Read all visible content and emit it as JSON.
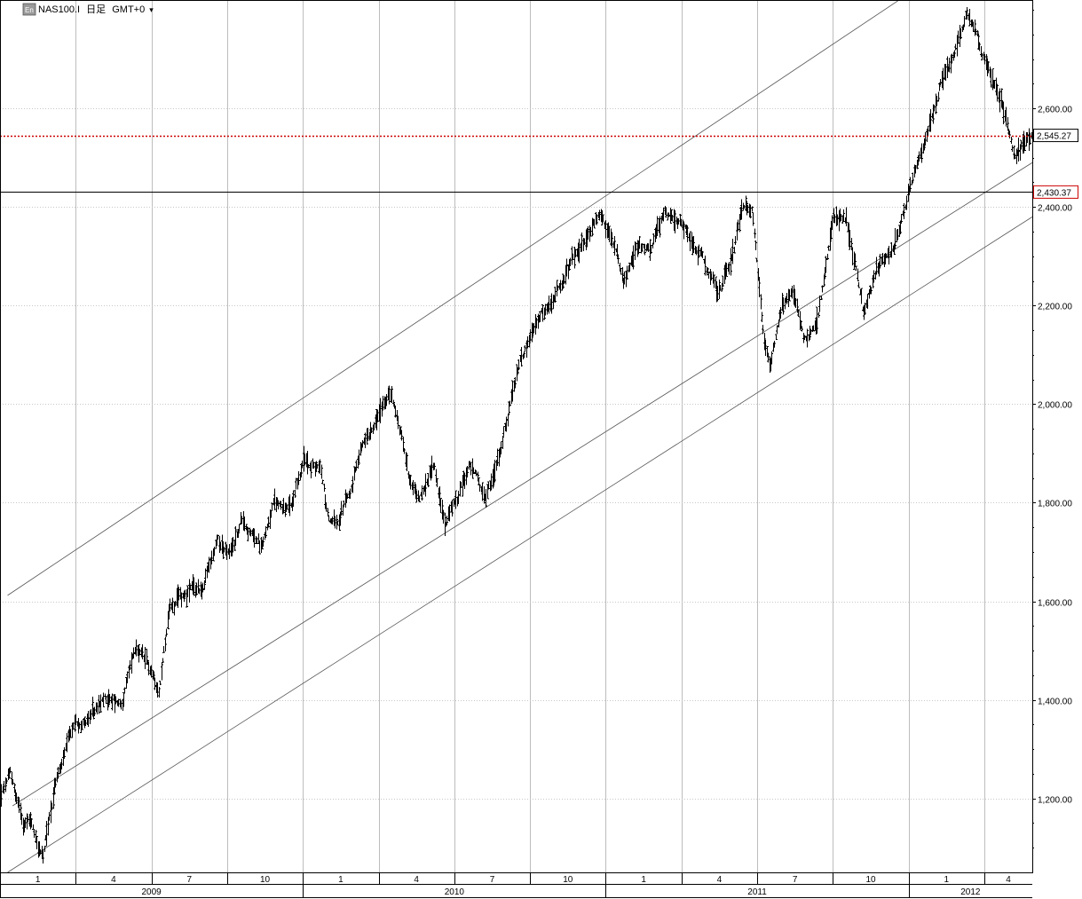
{
  "header": {
    "symbol": "NAS100.I",
    "timeframe": "日足",
    "timezone": "GMT+0",
    "menu_glyph": "▾"
  },
  "chart_data": {
    "type": "ohlc",
    "ylim": [
      1050,
      2820
    ],
    "y_ticks": [
      "1,200.00",
      "1,400.00",
      "1,600.00",
      "1,800.00",
      "2,000.00",
      "2,200.00",
      "2,400.00",
      "2,600.00"
    ],
    "y_tick_values": [
      1200,
      1400,
      1600,
      1800,
      2000,
      2200,
      2400,
      2600
    ],
    "x_month_labels": [
      "1",
      "4",
      "7",
      "10",
      "1",
      "4",
      "7",
      "10",
      "1",
      "4",
      "7",
      "10",
      "1",
      "4"
    ],
    "x_month_index": [
      0,
      3,
      6,
      9,
      12,
      15,
      18,
      21,
      24,
      27,
      30,
      33,
      36,
      39
    ],
    "x_range_months": [
      0,
      40.9
    ],
    "x_year_labels": [
      "2009",
      "2010",
      "2011",
      "2012"
    ],
    "x_year_index": [
      0,
      12,
      24,
      36
    ],
    "current_price": {
      "label": "2,545.27",
      "value": 2545.27,
      "color": "#cc0000"
    },
    "horizontal_line": {
      "label": "2,430.37",
      "value": 2430.37,
      "color": "#cc0000"
    },
    "channel_lines": [
      {
        "name": "upper",
        "points": [
          [
            0.3,
            1612
          ],
          [
            36.5,
            2850
          ]
        ]
      },
      {
        "name": "middle",
        "points": [
          [
            0.5,
            1185
          ],
          [
            40.9,
            2490
          ]
        ]
      },
      {
        "name": "lower",
        "points": [
          [
            0.3,
            1050
          ],
          [
            40.9,
            2380
          ]
        ]
      }
    ],
    "price_anchors": [
      [
        0.0,
        1205
      ],
      [
        0.4,
        1245
      ],
      [
        0.9,
        1150
      ],
      [
        1.2,
        1160
      ],
      [
        1.7,
        1080
      ],
      [
        2.2,
        1235
      ],
      [
        3.0,
        1350
      ],
      [
        3.6,
        1370
      ],
      [
        4.2,
        1400
      ],
      [
        4.8,
        1390
      ],
      [
        5.3,
        1500
      ],
      [
        5.9,
        1460
      ],
      [
        6.3,
        1420
      ],
      [
        6.7,
        1590
      ],
      [
        7.4,
        1620
      ],
      [
        8.0,
        1620
      ],
      [
        8.6,
        1720
      ],
      [
        9.1,
        1690
      ],
      [
        9.6,
        1770
      ],
      [
        10.3,
        1710
      ],
      [
        10.8,
        1800
      ],
      [
        11.6,
        1790
      ],
      [
        12.0,
        1880
      ],
      [
        12.7,
        1870
      ],
      [
        13.0,
        1770
      ],
      [
        13.4,
        1750
      ],
      [
        14.2,
        1880
      ],
      [
        14.8,
        1970
      ],
      [
        15.5,
        2020
      ],
      [
        15.8,
        1950
      ],
      [
        16.2,
        1860
      ],
      [
        16.6,
        1800
      ],
      [
        17.2,
        1880
      ],
      [
        17.6,
        1760
      ],
      [
        18.0,
        1800
      ],
      [
        18.6,
        1880
      ],
      [
        19.2,
        1800
      ],
      [
        19.6,
        1870
      ],
      [
        20.2,
        2000
      ],
      [
        20.6,
        2080
      ],
      [
        21.3,
        2160
      ],
      [
        22.0,
        2210
      ],
      [
        22.6,
        2280
      ],
      [
        23.3,
        2340
      ],
      [
        23.8,
        2390
      ],
      [
        24.4,
        2320
      ],
      [
        24.7,
        2240
      ],
      [
        25.3,
        2330
      ],
      [
        25.8,
        2310
      ],
      [
        26.3,
        2400
      ],
      [
        27.0,
        2370
      ],
      [
        27.8,
        2310
      ],
      [
        28.4,
        2220
      ],
      [
        28.9,
        2280
      ],
      [
        29.4,
        2400
      ],
      [
        29.8,
        2390
      ],
      [
        30.2,
        2160
      ],
      [
        30.5,
        2080
      ],
      [
        30.9,
        2200
      ],
      [
        31.4,
        2230
      ],
      [
        31.9,
        2130
      ],
      [
        32.4,
        2180
      ],
      [
        33.0,
        2370
      ],
      [
        33.5,
        2380
      ],
      [
        33.8,
        2300
      ],
      [
        34.2,
        2180
      ],
      [
        34.8,
        2280
      ],
      [
        35.4,
        2310
      ],
      [
        36.0,
        2440
      ],
      [
        36.6,
        2530
      ],
      [
        37.2,
        2640
      ],
      [
        37.8,
        2720
      ],
      [
        38.3,
        2790
      ],
      [
        38.8,
        2720
      ],
      [
        39.3,
        2670
      ],
      [
        39.8,
        2600
      ],
      [
        40.2,
        2500
      ],
      [
        40.6,
        2530
      ],
      [
        40.9,
        2545
      ]
    ]
  }
}
